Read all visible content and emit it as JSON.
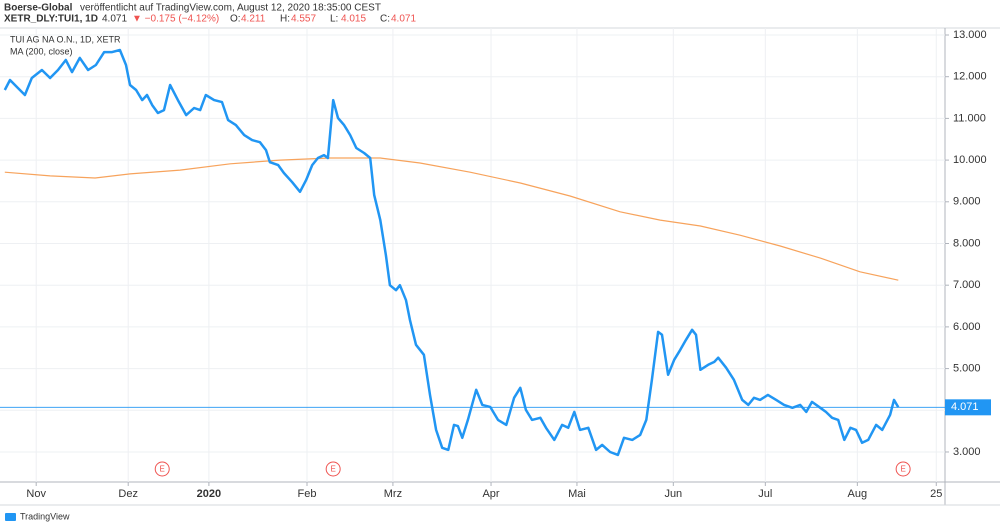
{
  "header": {
    "publisher": "Boerse-Global",
    "published": "veröffentlicht auf TradingView.com, August 12, 2020 18:35:00 CEST",
    "symbol": "XETR_DLY:TUI1, 1D",
    "price": "4.071",
    "change": "▼ −0.175 (−4.12%)",
    "ohlc": [
      {
        "label": "O:",
        "value": "4.211"
      },
      {
        "label": "H:",
        "value": "4.557"
      },
      {
        "label": "L:",
        "value": "4.015"
      },
      {
        "label": "C:",
        "value": "4.071"
      }
    ]
  },
  "chart_data": {
    "type": "line",
    "legend": [
      "TUI AG NA O.N., 1D, XETR",
      "MA (200, close)"
    ],
    "xlim": [
      0,
      216.7
    ],
    "ylim": [
      2.28,
      13.168
    ],
    "xticks": [
      {
        "value": 8.3,
        "label": "Nov"
      },
      {
        "value": 29.4,
        "label": "Dez"
      },
      {
        "value": 47.9,
        "label": "2020"
      },
      {
        "value": 70.4,
        "label": "Feb"
      },
      {
        "value": 90.1,
        "label": "Mrz"
      },
      {
        "value": 112.6,
        "label": "Apr"
      },
      {
        "value": 132.3,
        "label": "Mai"
      },
      {
        "value": 154.4,
        "label": "Jun"
      },
      {
        "value": 175.5,
        "label": "Jul"
      },
      {
        "value": 196.6,
        "label": "Aug"
      },
      {
        "value": 214.7,
        "label": "25"
      }
    ],
    "yticks": [
      {
        "value": 3,
        "label": "3.000"
      },
      {
        "value": 4,
        "label": "4.000"
      },
      {
        "value": 5,
        "label": "5.000"
      },
      {
        "value": 6,
        "label": "6.000"
      },
      {
        "value": 7,
        "label": "7.000"
      },
      {
        "value": 8,
        "label": "8.000"
      },
      {
        "value": 9,
        "label": "9.000"
      },
      {
        "value": 10,
        "label": "10.000"
      },
      {
        "value": 11,
        "label": "11.000"
      },
      {
        "value": 12,
        "label": "12.000"
      },
      {
        "value": 13,
        "label": "13.000"
      }
    ],
    "grid": true,
    "events": [
      {
        "x": 37.2,
        "label": "E"
      },
      {
        "x": 76.4,
        "label": "E"
      },
      {
        "x": 207.1,
        "label": "E"
      }
    ],
    "series": [
      {
        "name": "TUI AG NA O.N., 1D, XETR",
        "color": "#2196f3",
        "width": 2.5,
        "x": [
          1.1,
          2.3,
          4.1,
          5.7,
          7.3,
          9.6,
          11.5,
          13.3,
          15.1,
          16.5,
          18.3,
          20.2,
          22.0,
          23.9,
          25.7,
          27.5,
          28.9,
          29.8,
          31.2,
          32.6,
          33.7,
          34.9,
          36.2,
          37.6,
          39.0,
          40.8,
          42.7,
          44.5,
          45.9,
          47.2,
          49.1,
          50.9,
          52.3,
          54.1,
          56.0,
          57.8,
          59.6,
          61.0,
          61.9,
          63.8,
          65.1,
          67.0,
          68.8,
          70.2,
          71.6,
          72.9,
          74.3,
          75.2,
          76.4,
          77.5,
          78.9,
          80.3,
          81.7,
          83.5,
          84.9,
          85.8,
          87.2,
          88.5,
          89.4,
          90.8,
          91.7,
          93.1,
          94.0,
          95.4,
          97.2,
          98.6,
          100.0,
          101.4,
          102.8,
          104.1,
          105.0,
          106.0,
          107.3,
          109.2,
          110.6,
          112.4,
          114.2,
          116.1,
          117.9,
          119.3,
          120.6,
          122.0,
          123.9,
          125.2,
          127.1,
          128.9,
          130.3,
          131.7,
          133.0,
          134.9,
          136.7,
          138.1,
          139.9,
          141.7,
          143.1,
          145.0,
          146.8,
          148.2,
          149.5,
          150.9,
          151.8,
          153.2,
          154.6,
          156.0,
          157.3,
          158.7,
          159.6,
          160.6,
          162.4,
          163.8,
          164.7,
          166.5,
          168.3,
          170.2,
          171.6,
          172.9,
          174.3,
          176.1,
          178.0,
          179.8,
          181.7,
          183.5,
          184.9,
          186.2,
          188.1,
          189.4,
          190.8,
          192.2,
          193.6,
          195.0,
          196.3,
          197.7,
          199.1,
          200.9,
          202.3,
          204.1,
          205.0,
          206.0
        ],
        "values": [
          11.68,
          11.92,
          11.73,
          11.56,
          11.97,
          12.16,
          11.97,
          12.16,
          12.4,
          12.11,
          12.45,
          12.16,
          12.28,
          12.59,
          12.59,
          12.64,
          12.28,
          11.8,
          11.68,
          11.44,
          11.56,
          11.32,
          11.13,
          11.2,
          11.8,
          11.44,
          11.08,
          11.25,
          11.2,
          11.56,
          11.44,
          11.39,
          10.96,
          10.84,
          10.6,
          10.48,
          10.43,
          10.24,
          9.95,
          9.88,
          9.69,
          9.47,
          9.24,
          9.52,
          9.88,
          10.05,
          10.12,
          10.05,
          11.44,
          11.01,
          10.84,
          10.6,
          10.29,
          10.17,
          10.05,
          9.16,
          8.56,
          7.72,
          7.0,
          6.88,
          7.0,
          6.64,
          6.17,
          5.57,
          5.33,
          4.37,
          3.53,
          3.1,
          3.05,
          3.65,
          3.62,
          3.34,
          3.77,
          4.49,
          4.13,
          4.08,
          3.77,
          3.65,
          4.3,
          4.54,
          4.01,
          3.77,
          3.82,
          3.58,
          3.29,
          3.65,
          3.58,
          3.96,
          3.53,
          3.58,
          3.05,
          3.17,
          3.0,
          2.93,
          3.34,
          3.29,
          3.41,
          3.77,
          4.73,
          5.88,
          5.81,
          4.85,
          5.21,
          5.45,
          5.69,
          5.93,
          5.81,
          4.97,
          5.09,
          5.16,
          5.26,
          5.02,
          4.73,
          4.25,
          4.13,
          4.3,
          4.25,
          4.37,
          4.25,
          4.13,
          4.06,
          4.13,
          3.96,
          4.2,
          4.06,
          3.96,
          3.82,
          3.77,
          3.29,
          3.58,
          3.53,
          3.22,
          3.29,
          3.65,
          3.53,
          3.89,
          4.25,
          4.071
        ]
      },
      {
        "name": "MA (200, close)",
        "color": "#f7a35c",
        "width": 1.2,
        "x": [
          1.1,
          11.5,
          21.8,
          29.8,
          41.3,
          52.8,
          64.2,
          75.7,
          87.2,
          96.3,
          107.8,
          119.3,
          130.7,
          142.2,
          151.4,
          160.6,
          169.7,
          178.9,
          188.1,
          197.2,
          206.0
        ],
        "values": [
          9.71,
          9.62,
          9.57,
          9.67,
          9.76,
          9.91,
          10.0,
          10.05,
          10.05,
          9.93,
          9.71,
          9.45,
          9.14,
          8.76,
          8.56,
          8.42,
          8.2,
          7.94,
          7.65,
          7.32,
          7.12
        ]
      }
    ],
    "footer": "TradingView"
  }
}
